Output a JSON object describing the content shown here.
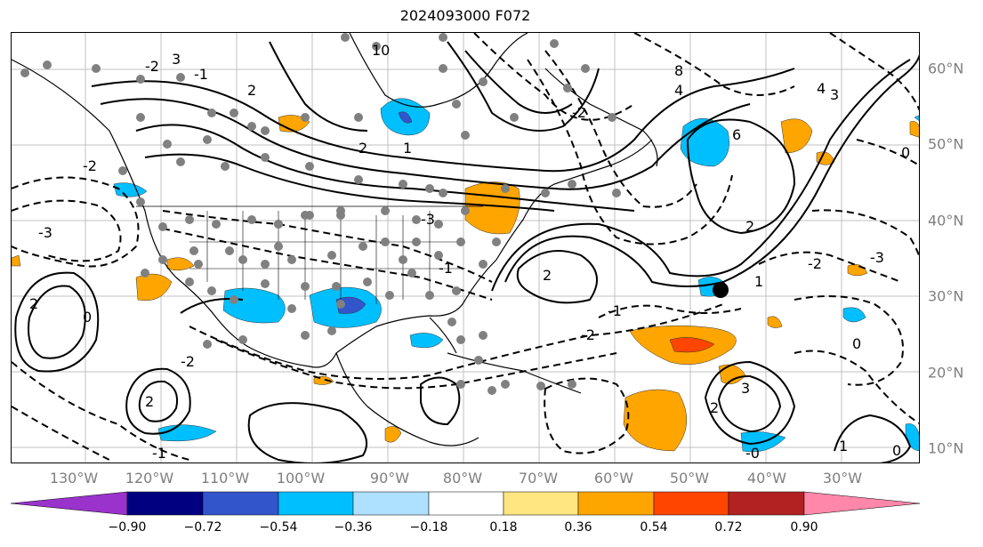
{
  "title": "2024093000 F072",
  "longitude_labels": [
    "130°W",
    "120°W",
    "110°W",
    "100°W",
    "90°W",
    "80°W",
    "70°W",
    "60°W",
    "50°W",
    "40°W",
    "30°W"
  ],
  "latitude_labels": [
    "60°N",
    "50°N",
    "40°N",
    "30°N",
    "20°N",
    "10°N"
  ],
  "colorbar": {
    "ticks": [
      "−0.90",
      "−0.72",
      "−0.54",
      "−0.36",
      "−0.18",
      "0.18",
      "0.36",
      "0.54",
      "0.72",
      "0.90"
    ],
    "colors": [
      "#9933cc",
      "#000080",
      "#3355cc",
      "#00bfff",
      "#aee0ff",
      "#ffffff",
      "#ffe680",
      "#ffa500",
      "#ff4500",
      "#b22222",
      "#ff88aa"
    ]
  },
  "contour_labels": {
    "solid": [
      "2",
      "3",
      "4",
      "6",
      "8",
      "10",
      "1",
      "2",
      "6",
      "4",
      "3",
      "2",
      "1",
      "2",
      "2",
      "0",
      "2",
      "3",
      "1",
      "2",
      "1"
    ],
    "dashed": [
      "-3",
      "-2",
      "-1",
      "-3",
      "-2",
      "-2",
      "-1",
      "-1",
      "-2",
      "-3",
      "-1",
      "0",
      "0",
      "-1",
      "-2",
      "-1",
      "-1",
      "0",
      "-1",
      "-3",
      "-2",
      "0",
      "-0"
    ]
  },
  "marker": {
    "lon": -46,
    "lat": 31,
    "color": "#000000"
  }
}
